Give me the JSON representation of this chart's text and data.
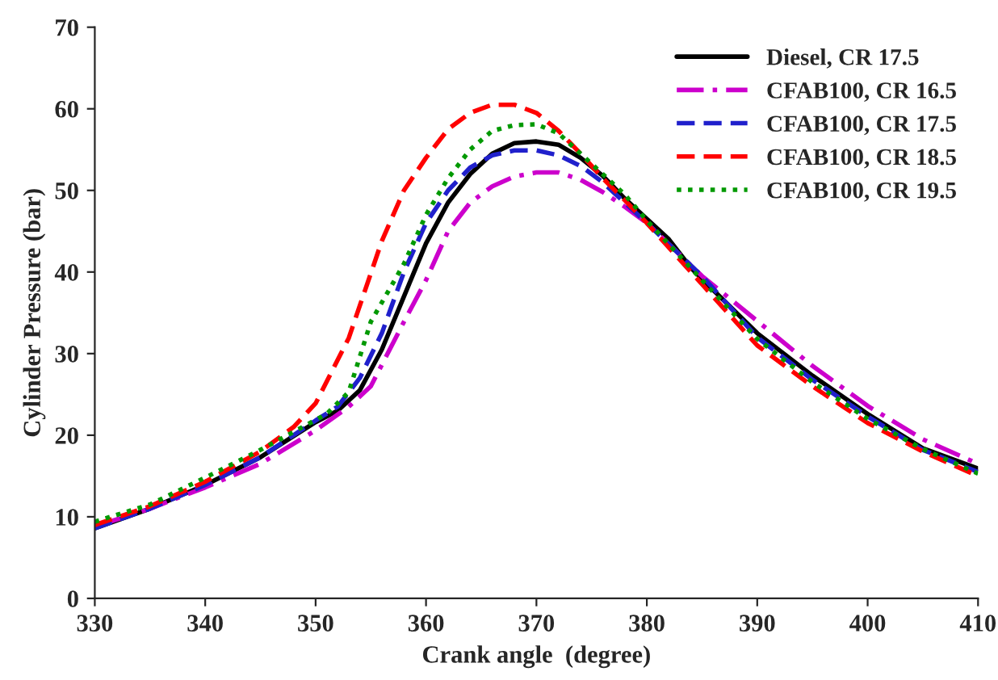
{
  "chart_data": {
    "type": "line",
    "xlabel": "Crank angle  (degree)",
    "ylabel": "Cylinder Pressure (bar)",
    "xlim": [
      330,
      410
    ],
    "xticks": [
      330,
      340,
      350,
      360,
      370,
      380,
      390,
      400,
      410
    ],
    "ylim": [
      0,
      70
    ],
    "yticks": [
      0,
      10,
      20,
      30,
      40,
      50,
      60,
      70
    ],
    "grid": false,
    "legend": "top right",
    "marker": "none",
    "series": [
      {
        "name": "Diesel, CR 17.5",
        "color": "#000000",
        "line_style": "solid",
        "x": [
          330,
          335,
          340,
          345,
          350,
          352,
          354,
          356,
          358,
          360,
          362,
          364,
          366,
          368,
          370,
          372,
          374,
          376,
          378,
          380,
          382,
          384,
          386,
          390,
          395,
          400,
          405,
          410
        ],
        "values": [
          8.6,
          11,
          13.9,
          17.3,
          21.6,
          23,
          25.5,
          30.5,
          37,
          43.5,
          48.5,
          52,
          54.5,
          55.8,
          56,
          55.6,
          54,
          51.8,
          49,
          46.5,
          44,
          40.5,
          37.8,
          32.5,
          27.3,
          22.6,
          18.4,
          15.9
        ]
      },
      {
        "name": "CFAB100, CR 16.5",
        "color": "#cc00cc",
        "line_style": "dashdot",
        "x": [
          330,
          335,
          340,
          345,
          350,
          353,
          355,
          358,
          360,
          362,
          364,
          366,
          368,
          370,
          372,
          374,
          376,
          378,
          380,
          385,
          390,
          395,
          400,
          405,
          410
        ],
        "values": [
          8.8,
          11,
          13.6,
          16.5,
          20.6,
          23.5,
          26,
          33.9,
          39,
          45,
          48.5,
          50.5,
          51.7,
          52.2,
          52.2,
          51.3,
          49.8,
          48,
          46,
          39.5,
          34,
          28.5,
          23.6,
          19.5,
          16.5
        ]
      },
      {
        "name": "CFAB100, CR 17.5",
        "color": "#2020cc",
        "line_style": "dashed",
        "x": [
          330,
          335,
          340,
          345,
          350,
          352,
          354,
          356,
          358,
          360,
          362,
          364,
          366,
          368,
          370,
          372,
          374,
          376,
          378,
          380,
          385,
          390,
          395,
          400,
          405,
          410
        ],
        "values": [
          8.6,
          11,
          13.9,
          17.3,
          21.8,
          23.5,
          27,
          32.5,
          40,
          46,
          50,
          52.8,
          54.3,
          54.9,
          54.9,
          54.3,
          53,
          51,
          48.5,
          46,
          39.5,
          32,
          26.8,
          22.3,
          18.2,
          15.5
        ]
      },
      {
        "name": "CFAB100, CR 18.5",
        "color": "#ff0000",
        "line_style": "dashed",
        "x": [
          330,
          335,
          340,
          345,
          348,
          350,
          353,
          356,
          358,
          360,
          362,
          364,
          366,
          368,
          370,
          372,
          374,
          376,
          378,
          380,
          385,
          390,
          395,
          400,
          405,
          410
        ],
        "values": [
          9,
          11.3,
          14.3,
          18,
          21,
          23.9,
          31.9,
          43.8,
          50,
          54,
          57.5,
          59.5,
          60.5,
          60.5,
          59.5,
          57.3,
          54.5,
          51.5,
          48.8,
          46,
          38.5,
          31,
          26,
          21.5,
          18,
          15
        ]
      },
      {
        "name": "CFAB100, CR 19.5",
        "color": "#009900",
        "line_style": "dotted",
        "x": [
          330,
          335,
          340,
          345,
          351,
          353,
          355,
          358,
          360,
          362,
          364,
          366,
          368,
          370,
          372,
          374,
          376,
          378,
          380,
          385,
          390,
          395,
          400,
          405,
          410
        ],
        "values": [
          9.4,
          11.5,
          14.8,
          18.2,
          22.6,
          25.3,
          33.9,
          41,
          47,
          51.5,
          55,
          57.3,
          58,
          58.1,
          57,
          54.5,
          52,
          49.5,
          46.3,
          39,
          31.8,
          26.5,
          22,
          18.3,
          15.3
        ]
      }
    ]
  }
}
